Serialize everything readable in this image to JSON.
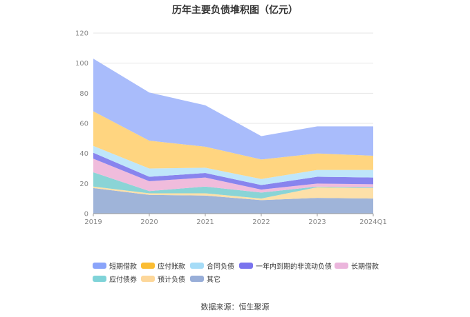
{
  "chart_data": {
    "type": "area",
    "stacked": true,
    "title": "历年主要负债堆积图（亿元）",
    "categories": [
      "2019",
      "2020",
      "2021",
      "2022",
      "2023",
      "2024Q1"
    ],
    "ylim": [
      0,
      120
    ],
    "yticks": [
      0,
      20,
      40,
      60,
      80,
      100,
      120
    ],
    "grid": true,
    "legend_position": "bottom",
    "series": [
      {
        "name": "其它",
        "color": "#9fb4d9",
        "values": [
          17,
          12.5,
          12,
          9,
          10.5,
          10
        ]
      },
      {
        "name": "预计负债",
        "color": "#fde0a8",
        "values": [
          1,
          1,
          1.5,
          1,
          7,
          7
        ]
      },
      {
        "name": "应付债券",
        "color": "#8ad4d6",
        "values": [
          9.5,
          1.5,
          4.5,
          4,
          0.5,
          0.5
        ]
      },
      {
        "name": "长期借款",
        "color": "#f0bcdc",
        "values": [
          9,
          6.5,
          6,
          2,
          2,
          2
        ]
      },
      {
        "name": "一年内到期的非流动负债",
        "color": "#8884ee",
        "values": [
          4,
          3,
          3,
          3,
          4.5,
          4.5
        ]
      },
      {
        "name": "合同负债",
        "color": "#bfe6fa",
        "values": [
          4.5,
          5.5,
          3.5,
          4,
          4.5,
          5
        ]
      },
      {
        "name": "应付账款",
        "color": "#ffd580",
        "values": [
          23,
          18.5,
          14,
          13,
          11,
          9.5
        ]
      },
      {
        "name": "短期借款",
        "color": "#a9bcfb",
        "values": [
          35,
          32,
          27.5,
          15.5,
          18,
          19.5
        ]
      }
    ]
  },
  "legend": [
    {
      "label": "短期借款",
      "color": "#8aa4fa"
    },
    {
      "label": "应付账款",
      "color": "#fbbd33"
    },
    {
      "label": "合同负债",
      "color": "#a6dcf7"
    },
    {
      "label": "一年内到期的非流动负债",
      "color": "#7a74ee"
    },
    {
      "label": "长期借款",
      "color": "#ebb5dc"
    },
    {
      "label": "应付债券",
      "color": "#7fd3d8"
    },
    {
      "label": "预计负债",
      "color": "#fdd79a"
    },
    {
      "label": "其它",
      "color": "#98aed8"
    }
  ],
  "source": "数据来源：恒生聚源"
}
